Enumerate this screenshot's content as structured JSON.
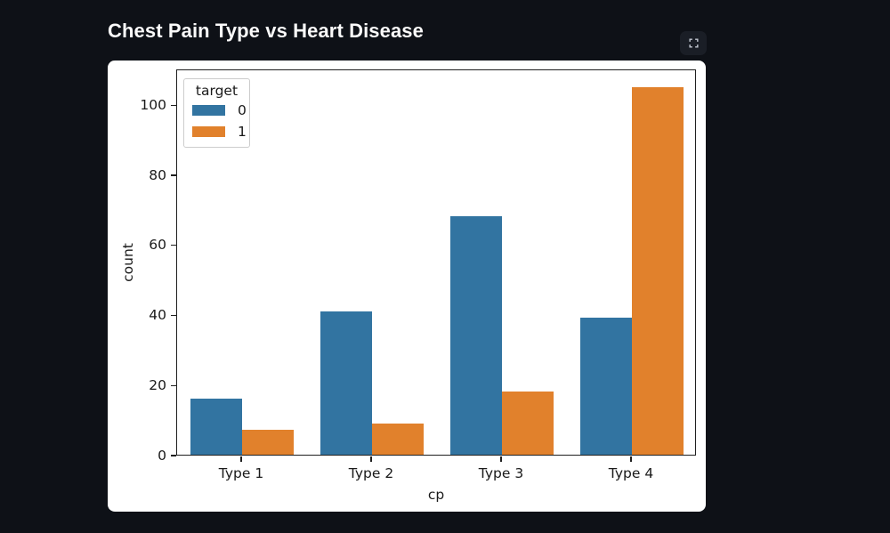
{
  "theme": {
    "background": "#0e1117",
    "card_background": "#ffffff",
    "title_color": "#fafafa",
    "text_color": "#1a1a1a",
    "button_background": "#1a1e26",
    "button_icon_color": "#c3c8d2"
  },
  "header": {
    "title": "Chest Pain Type vs Heart Disease"
  },
  "chart_data": {
    "type": "bar",
    "title": "Chest Pain Type vs Heart Disease",
    "categories": [
      "Type 1",
      "Type 2",
      "Type 3",
      "Type 4"
    ],
    "series": [
      {
        "name": "0",
        "color": "#3274a1",
        "values": [
          16,
          41,
          68,
          39
        ]
      },
      {
        "name": "1",
        "color": "#e1812c",
        "values": [
          7,
          9,
          18,
          105
        ]
      }
    ],
    "legend": {
      "title": "target",
      "position": "upper left",
      "entries": [
        "0",
        "1"
      ]
    },
    "xlabel": "cp",
    "ylabel": "count",
    "ylim": [
      0,
      110.25
    ],
    "yticks": [
      0,
      20,
      40,
      60,
      80,
      100
    ],
    "grid": false
  }
}
